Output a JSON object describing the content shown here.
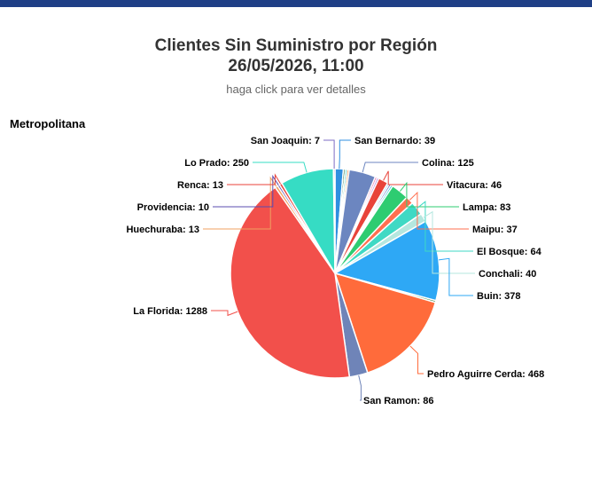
{
  "header": {
    "title_line1": "Clientes Sin Suministro por Región",
    "title_line2": "26/05/2026, 11:00",
    "subtitle": "haga click para ver detalles"
  },
  "region_label": "Metropolitana",
  "colors": {
    "topbar": "#1f3f86",
    "slice_border": "#ffffff"
  },
  "chart_data": {
    "type": "pie",
    "title": "Clientes Sin Suministro por Región",
    "subtitle": "haga click para ver detalles",
    "label_format": "{name}: {value}",
    "slices": [
      {
        "name": "San Bernardo",
        "value": 39,
        "color": "#2f8fe0",
        "labeled": true
      },
      {
        "name": "",
        "value": 9,
        "color": "#1e6b3a",
        "labeled": false
      },
      {
        "name": "",
        "value": 9,
        "color": "#2ec4b6",
        "labeled": false
      },
      {
        "name": "",
        "value": 9,
        "color": "#f58231",
        "labeled": false
      },
      {
        "name": "Colina",
        "value": 125,
        "color": "#6c86c0",
        "labeled": true
      },
      {
        "name": "",
        "value": 9,
        "color": "#e84a9a",
        "labeled": false
      },
      {
        "name": "",
        "value": 9,
        "color": "#9b59d6",
        "labeled": false
      },
      {
        "name": "Vitacura",
        "value": 46,
        "color": "#e8433a",
        "labeled": true
      },
      {
        "name": "",
        "value": 9,
        "color": "#9ad0f5",
        "labeled": false
      },
      {
        "name": "",
        "value": 9,
        "color": "#3f51b5",
        "labeled": false
      },
      {
        "name": "",
        "value": 9,
        "color": "#00bcd4",
        "labeled": false
      },
      {
        "name": "Lampa",
        "value": 83,
        "color": "#2ecc71",
        "labeled": true
      },
      {
        "name": "Maipu",
        "value": 37,
        "color": "#ff6f4f",
        "labeled": true
      },
      {
        "name": "El Bosque",
        "value": 64,
        "color": "#3fd9c4",
        "labeled": true
      },
      {
        "name": "Conchali",
        "value": 40,
        "color": "#b5e7df",
        "labeled": true
      },
      {
        "name": "Buin",
        "value": 378,
        "color": "#2ea8f5",
        "labeled": true
      },
      {
        "name": "",
        "value": 9,
        "color": "#2e7d32",
        "labeled": false
      },
      {
        "name": "Pedro Aguirre Cerda",
        "value": 468,
        "color": "#ff6b3b",
        "labeled": true
      },
      {
        "name": "San Ramon",
        "value": 86,
        "color": "#6f84b8",
        "labeled": true
      },
      {
        "name": "La Florida",
        "value": 1288,
        "color": "#f2504b",
        "labeled": true
      },
      {
        "name": "Huechuraba",
        "value": 13,
        "color": "#f0a060",
        "labeled": true
      },
      {
        "name": "Providencia",
        "value": 10,
        "color": "#5b4db0",
        "labeled": true
      },
      {
        "name": "Renca",
        "value": 13,
        "color": "#e8433a",
        "labeled": true
      },
      {
        "name": "Lo Prado",
        "value": 250,
        "color": "#36dcc4",
        "labeled": true
      },
      {
        "name": "San Joaquin",
        "value": 7,
        "color": "#7d6cc4",
        "labeled": true
      }
    ]
  }
}
